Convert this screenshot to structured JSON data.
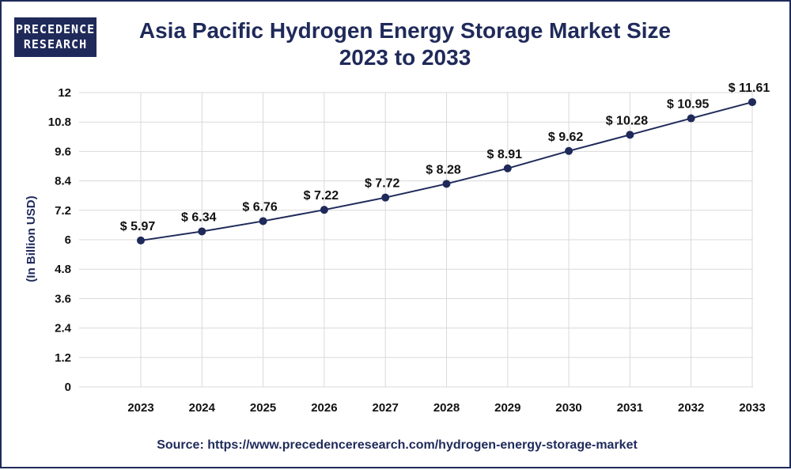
{
  "logo": {
    "line1": "PRECEDENCE",
    "line2": "RESEARCH"
  },
  "title_line1": "Asia Pacific Hydrogen Energy Storage Market Size",
  "title_line2": "2023 to 2033",
  "source": "Source: https://www.precedenceresearch.com/hydrogen-energy-storage-market",
  "colors": {
    "accent": "#1f2a5a",
    "grid": "#d9d9d9",
    "line": "#1f2a5a"
  },
  "chart_data": {
    "type": "line",
    "title": "Asia Pacific Hydrogen Energy Storage Market Size 2023 to 2033",
    "xlabel": "",
    "ylabel": "(In Billion USD)",
    "categories": [
      "2023",
      "2024",
      "2025",
      "2026",
      "2027",
      "2028",
      "2029",
      "2030",
      "2031",
      "2032",
      "2033"
    ],
    "values": [
      5.97,
      6.34,
      6.76,
      7.22,
      7.72,
      8.28,
      8.91,
      9.62,
      10.28,
      10.95,
      11.61
    ],
    "data_labels": [
      "$ 5.97",
      "$ 6.34",
      "$ 6.76",
      "$ 7.22",
      "$ 7.72",
      "$ 8.28",
      "$ 8.91",
      "$ 9.62",
      "$ 10.28",
      "$ 10.95",
      "$ 11.61"
    ],
    "yticks": [
      "0",
      "1.2",
      "2.4",
      "3.6",
      "4.8",
      "6",
      "7.2",
      "8.4",
      "9.6",
      "10.8",
      "12"
    ],
    "ylim": [
      0,
      12
    ],
    "grid": true,
    "legend": "none"
  }
}
